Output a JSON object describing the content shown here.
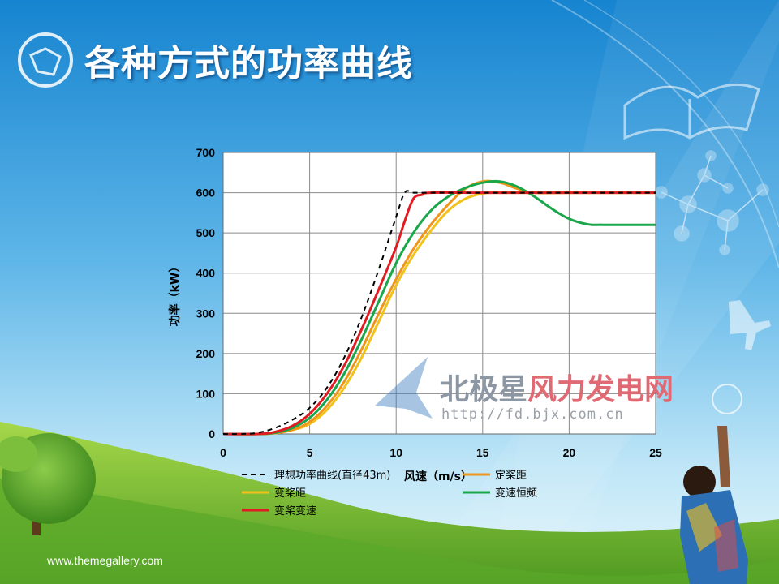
{
  "slide": {
    "title": "各种方式的功率曲线",
    "footer": "www.themegallery.com"
  },
  "watermark": {
    "name_part1": "北极星",
    "name_part2": "风力发电网",
    "url": "http://fd.bjx.com.cn",
    "color1": "#8d96a3",
    "color2": "#e06a74"
  },
  "colors": {
    "sky_top": "#1b8fd6",
    "sky_bottom": "#bfe6f7",
    "grass": "#7cc13a"
  },
  "chart_data": {
    "type": "line",
    "title": "",
    "xlabel": "风速（m/s）",
    "ylabel": "功率（kW）",
    "xlim": [
      0,
      25
    ],
    "ylim": [
      0,
      700
    ],
    "xticks": [
      "0",
      "5",
      "10",
      "15",
      "20",
      "25"
    ],
    "yticks": [
      "0",
      "100",
      "200",
      "300",
      "400",
      "500",
      "600",
      "700"
    ],
    "grid": true,
    "legend_position": "bottom",
    "series": [
      {
        "name": "理想功率曲线(直径43m)",
        "color": "#000000",
        "dash": true,
        "x": [
          0,
          1,
          2,
          3,
          4,
          5,
          6,
          7,
          8,
          9,
          10,
          10.5,
          11,
          12,
          15,
          20,
          25
        ],
        "y": [
          0,
          0,
          3,
          15,
          35,
          65,
          115,
          190,
          290,
          410,
          540,
          600,
          600,
          600,
          600,
          600,
          600
        ]
      },
      {
        "name": "定桨距",
        "color": "#f0961a",
        "dash": false,
        "x": [
          0,
          2,
          3,
          4,
          5,
          6,
          7,
          8,
          9,
          10,
          11,
          12,
          13,
          14,
          15,
          16,
          17,
          18,
          20,
          25
        ],
        "y": [
          0,
          0,
          2,
          10,
          30,
          70,
          130,
          210,
          300,
          385,
          460,
          520,
          570,
          610,
          628,
          625,
          610,
          600,
          600,
          600
        ]
      },
      {
        "name": "变桨距",
        "color": "#f2c21c",
        "dash": false,
        "x": [
          0,
          2,
          3,
          4,
          5,
          6,
          7,
          8,
          9,
          10,
          11,
          12,
          13,
          14,
          15,
          16,
          20,
          25
        ],
        "y": [
          0,
          0,
          2,
          10,
          25,
          60,
          115,
          190,
          280,
          370,
          445,
          505,
          555,
          585,
          598,
          600,
          600,
          600
        ]
      },
      {
        "name": "变速恒频",
        "color": "#1aa64a",
        "dash": false,
        "x": [
          0,
          2,
          3,
          4,
          5,
          6,
          7,
          8,
          9,
          10,
          11,
          12,
          13,
          14,
          15,
          16,
          17,
          18,
          19,
          20,
          21,
          22,
          25
        ],
        "y": [
          0,
          0,
          3,
          15,
          40,
          85,
          150,
          235,
          330,
          425,
          500,
          555,
          590,
          612,
          625,
          628,
          615,
          590,
          560,
          535,
          522,
          520,
          520
        ]
      },
      {
        "name": "变桨变速",
        "color": "#e01b22",
        "dash": false,
        "x": [
          0,
          2,
          3,
          4,
          5,
          6,
          7,
          8,
          9,
          10,
          10.5,
          11,
          11.5,
          12,
          15,
          20,
          25
        ],
        "y": [
          0,
          0,
          5,
          20,
          50,
          100,
          170,
          260,
          360,
          465,
          530,
          585,
          595,
          600,
          600,
          600,
          600
        ]
      }
    ]
  }
}
